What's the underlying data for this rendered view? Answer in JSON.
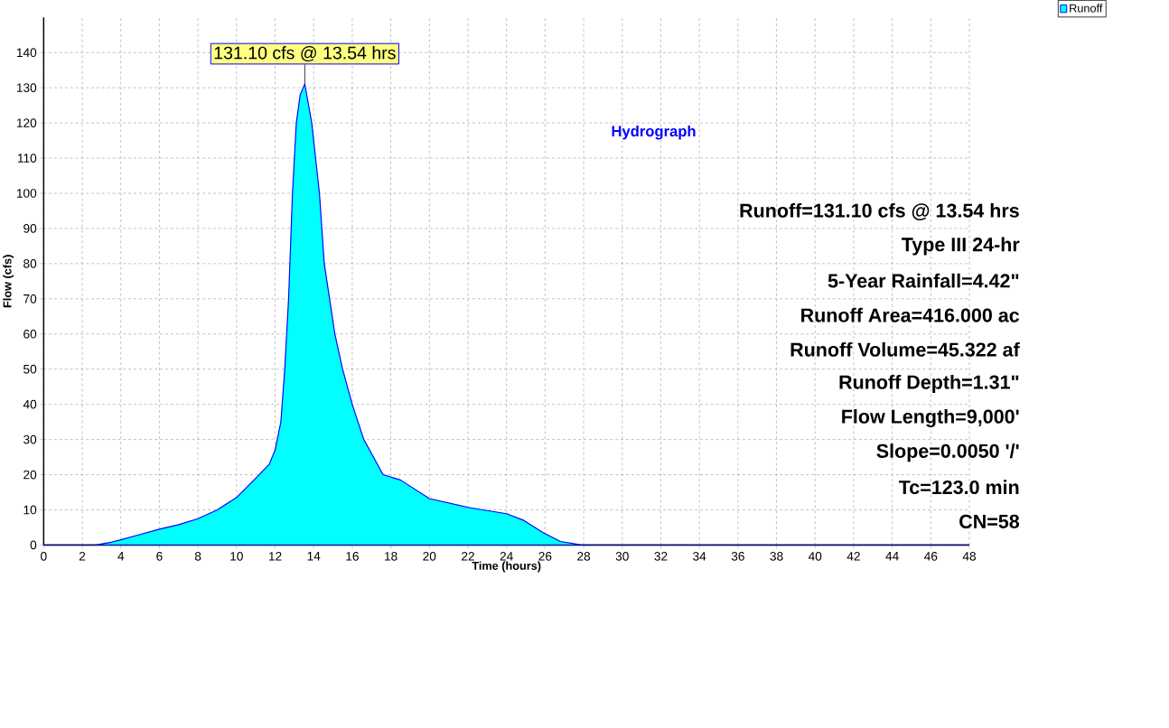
{
  "chart_data": {
    "type": "area",
    "title": "Hydrograph",
    "xlabel": "Time  (hours)",
    "ylabel": "Flow  (cfs)",
    "x": [
      0,
      1,
      2,
      2.7,
      3.5,
      4,
      5,
      6,
      7,
      8,
      9,
      10,
      11,
      11.7,
      12,
      12.3,
      12.5,
      12.7,
      12.9,
      13.1,
      13.3,
      13.54,
      13.9,
      14.3,
      14.55,
      15.1,
      15.5,
      16,
      16.6,
      17.6,
      18.5,
      20,
      22,
      24,
      24.9,
      25.9,
      26.8,
      27.9,
      30,
      36,
      42,
      48
    ],
    "series": [
      {
        "name": "Runoff",
        "color": "#00ffff",
        "values": [
          0,
          0,
          0,
          0,
          0.8,
          1.5,
          3,
          4.5,
          5.8,
          7.5,
          10,
          13.5,
          19,
          23,
          27,
          35,
          50,
          70,
          100,
          120,
          128,
          131.1,
          120,
          100,
          80,
          60,
          50,
          40,
          30,
          20,
          18.5,
          13.2,
          10.7,
          8.9,
          7,
          3.5,
          1,
          0,
          0,
          0,
          0,
          0
        ]
      }
    ],
    "xlim": [
      0,
      48
    ],
    "ylim": [
      0,
      150
    ],
    "xticks": [
      0,
      2,
      4,
      6,
      8,
      10,
      12,
      14,
      16,
      18,
      20,
      22,
      24,
      26,
      28,
      30,
      32,
      34,
      36,
      38,
      40,
      42,
      44,
      46,
      48
    ],
    "yticks": [
      0,
      10,
      20,
      30,
      40,
      50,
      60,
      70,
      80,
      90,
      100,
      110,
      120,
      130,
      140
    ],
    "grid": true,
    "legend": "top right",
    "annotations": [
      {
        "text": "131.10 cfs @ 13.54 hrs",
        "x": 13.54,
        "y": 131.1
      },
      "Runoff=131.10 cfs @ 13.54 hrs",
      "Type III 24-hr",
      "5-Year Rainfall=4.42\"",
      "Runoff Area=416.000 ac",
      "Runoff Volume=45.322 af",
      "Runoff Depth=1.31\"",
      "Flow Length=9,000'",
      "Slope=0.0050 '/'",
      "Tc=123.0 min",
      "CN=58"
    ]
  }
}
